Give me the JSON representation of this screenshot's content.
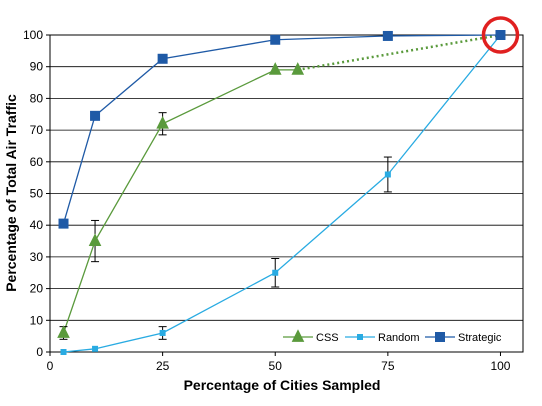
{
  "chart_data": {
    "type": "line",
    "xlabel": "Percentage of Cities Sampled",
    "ylabel": "Percentage of Total Air Traffic",
    "xlim": [
      0,
      105
    ],
    "ylim": [
      0,
      100
    ],
    "xticks": [
      0,
      25,
      50,
      75,
      100
    ],
    "yticks": [
      0,
      10,
      20,
      30,
      40,
      50,
      60,
      70,
      80,
      90,
      100
    ],
    "grid": "horizontal",
    "legend_position": "bottom-right",
    "series": [
      {
        "name": "CSS",
        "color": "#5a9a3c",
        "marker": "triangle",
        "x": [
          3,
          10,
          25,
          50,
          55
        ],
        "y": [
          6,
          35,
          72,
          89,
          89
        ],
        "error": [
          2,
          6.5,
          3.5,
          0,
          0
        ],
        "extension": {
          "x": [
            55,
            100
          ],
          "y": [
            89,
            100
          ],
          "style": "dotted"
        }
      },
      {
        "name": "Random",
        "color": "#29abe2",
        "marker": "square",
        "x": [
          3,
          10,
          25,
          50,
          75,
          100
        ],
        "y": [
          0,
          1,
          6,
          25,
          56,
          100
        ],
        "error": [
          0,
          0,
          2,
          4.5,
          5.5,
          0
        ]
      },
      {
        "name": "Strategic",
        "color": "#1f5aa6",
        "marker": "square",
        "x": [
          3,
          10,
          25,
          50,
          75,
          100
        ],
        "y": [
          40.5,
          74.5,
          92.5,
          98.5,
          99.7,
          100
        ],
        "error": [
          0,
          0,
          0,
          0,
          0,
          0
        ]
      }
    ],
    "highlight": {
      "x": 100,
      "y": 100,
      "shape": "circle",
      "color": "#e02020"
    }
  }
}
